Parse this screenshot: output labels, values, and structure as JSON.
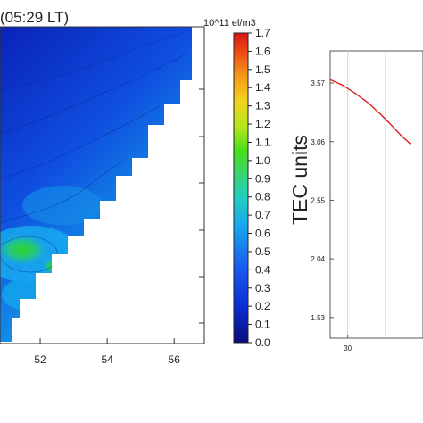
{
  "chart_data": [
    {
      "type": "heatmap",
      "title": "(05:29 LT)",
      "colorbar_label": "10^11 el/m3",
      "colorbar_ticks": [
        "0.0",
        "0.1",
        "0.2",
        "0.3",
        "0.4",
        "0.5",
        "0.6",
        "0.7",
        "0.8",
        "0.9",
        "1.0",
        "1.1",
        "1.2",
        "1.3",
        "1.4",
        "1.5",
        "1.6",
        "1.7"
      ],
      "colorbar_range": [
        0.0,
        1.7
      ],
      "x_ticks": [
        "52",
        "54",
        "56"
      ],
      "xlim": [
        50.8,
        56.9
      ]
    },
    {
      "type": "line",
      "ylabel": "TEC units",
      "y_ticks": [
        "3.57",
        "3.06",
        "2.55",
        "2.04",
        "1.53"
      ],
      "ylim": [
        1.35,
        3.85
      ],
      "x_ticks": [
        "30"
      ],
      "xlim": [
        29.3,
        33.0
      ],
      "grid": true,
      "series": [
        {
          "color": "#e02020",
          "x": [
            29.3,
            29.8,
            30.3,
            30.8,
            31.3,
            31.8,
            32.1,
            32.5
          ],
          "y": [
            3.6,
            3.55,
            3.48,
            3.4,
            3.3,
            3.19,
            3.12,
            3.04
          ]
        }
      ]
    }
  ]
}
